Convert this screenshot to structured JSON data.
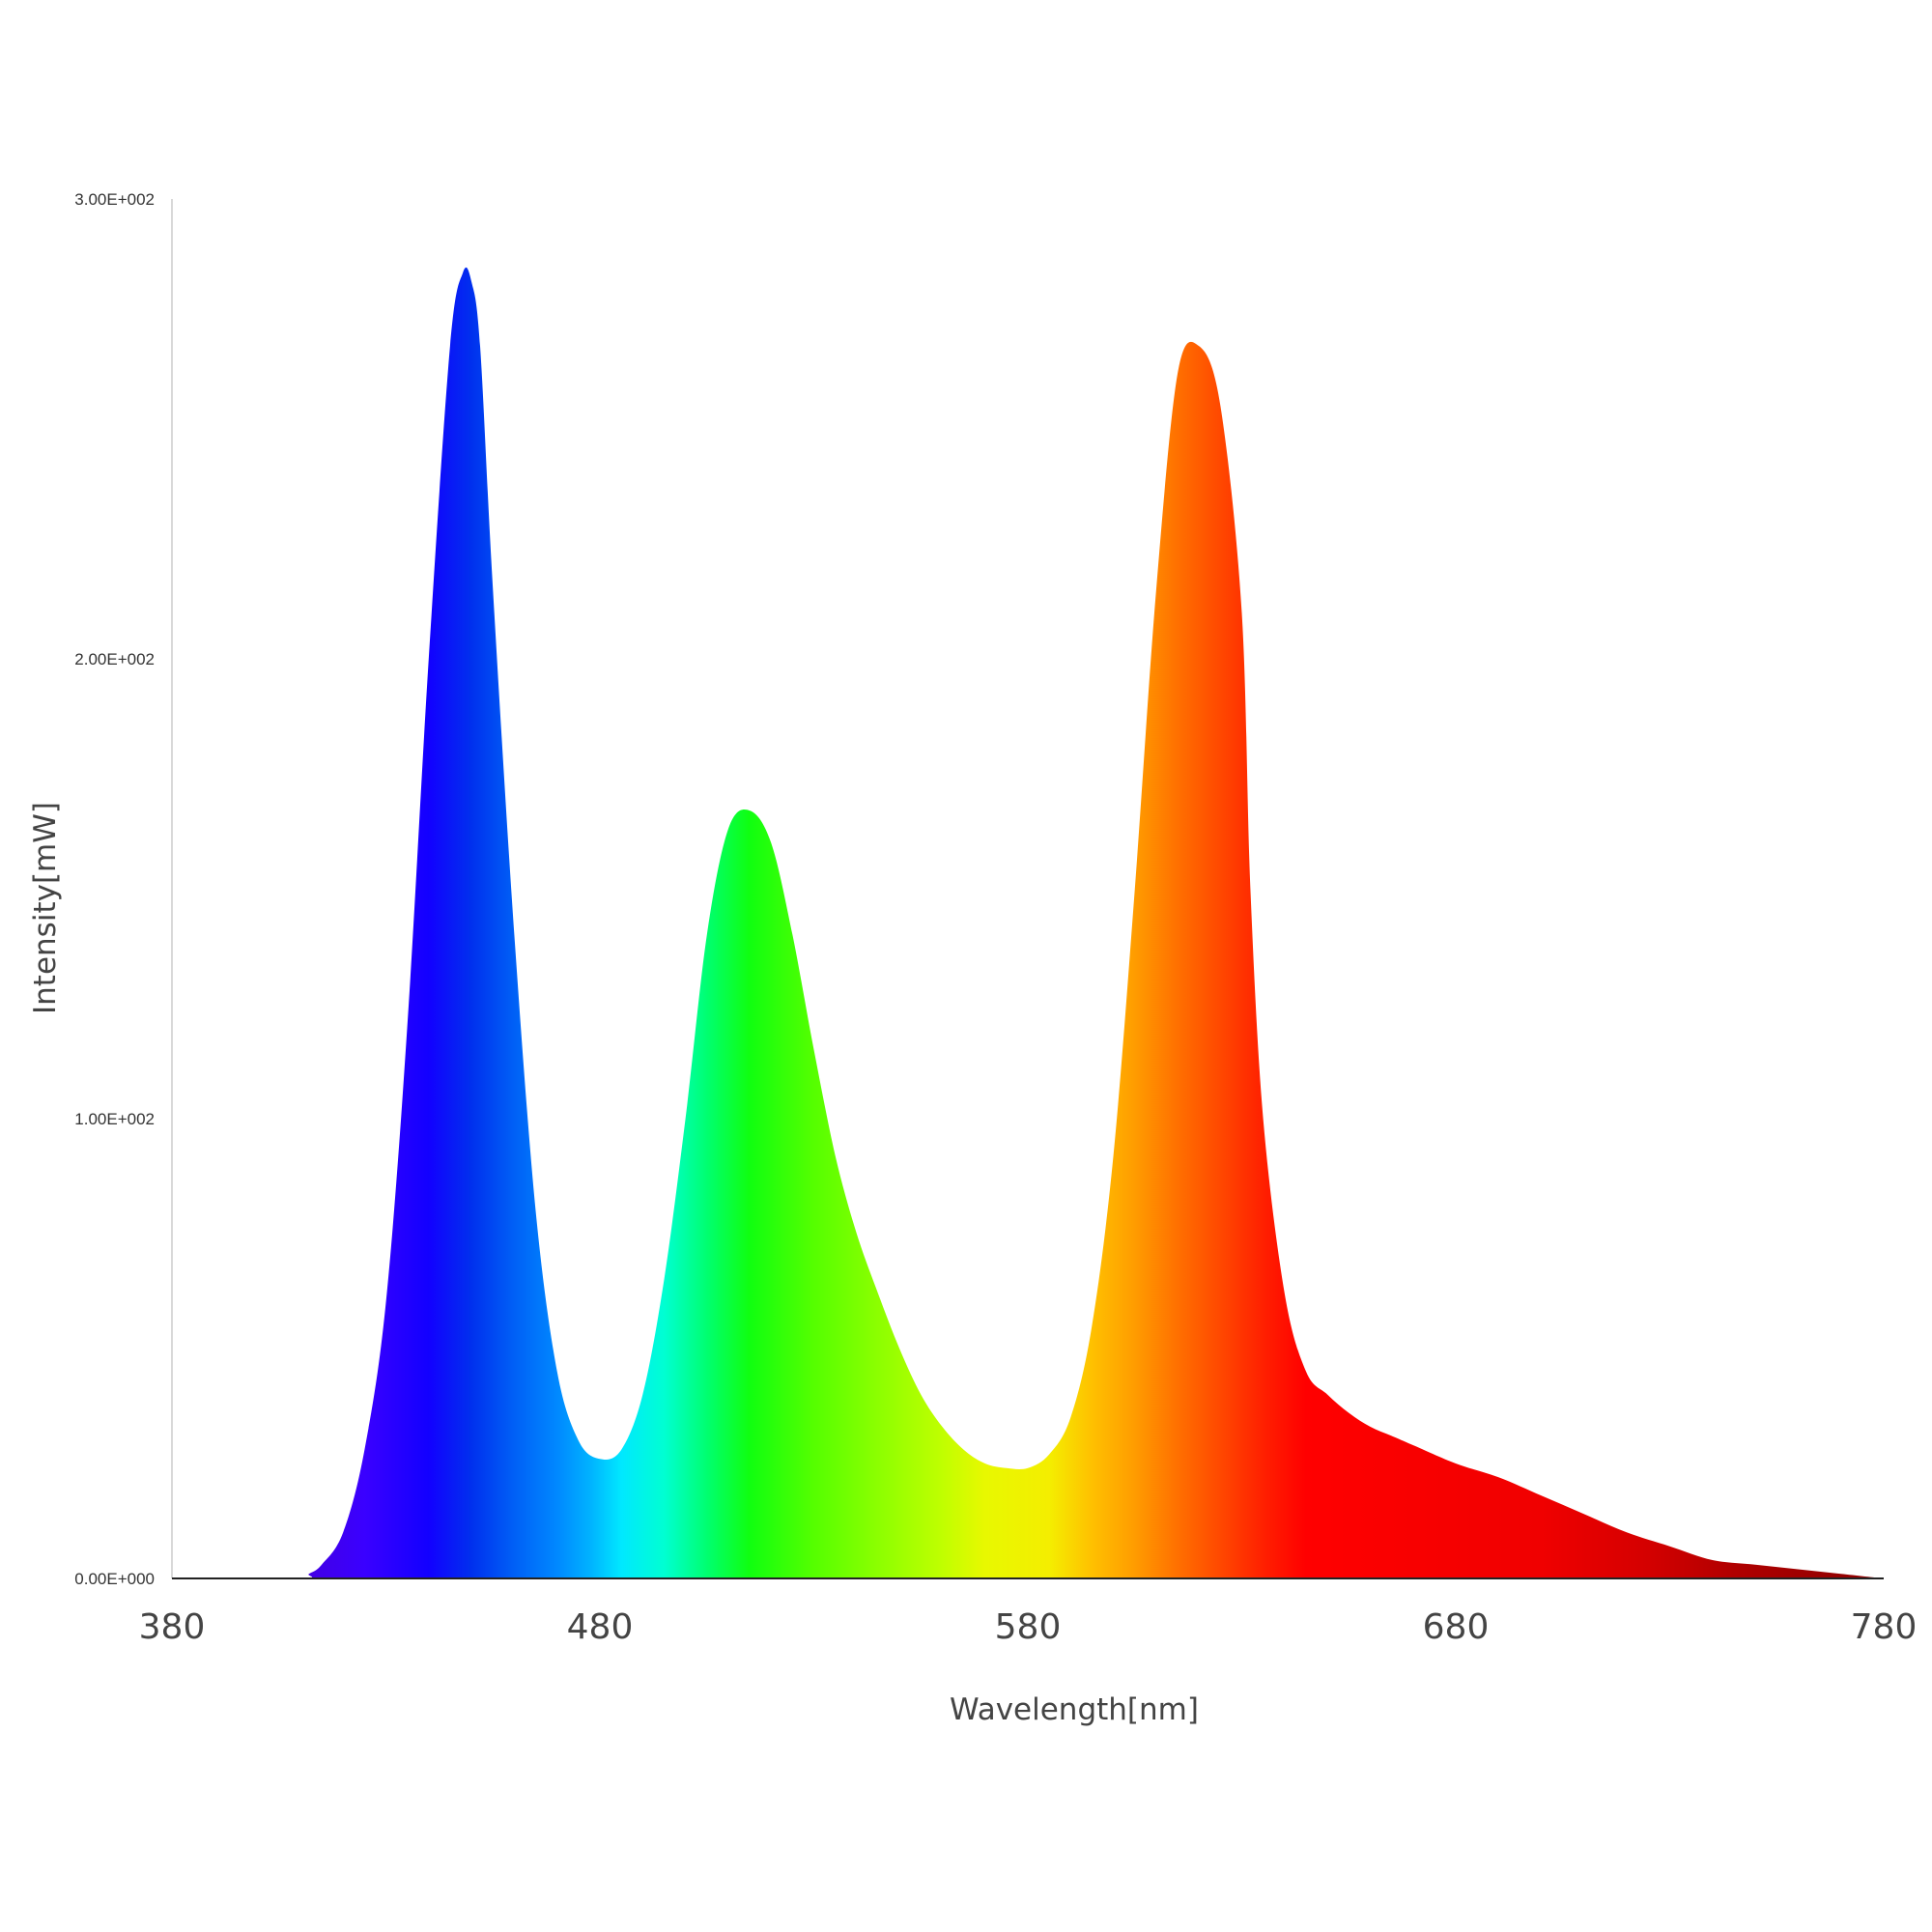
{
  "chart_data": {
    "type": "area",
    "title": "",
    "xlabel": "Wavelength[nm]",
    "ylabel": "Intensity[mW]",
    "xlim": [
      380,
      780
    ],
    "ylim": [
      0,
      300
    ],
    "x_ticks": [
      380,
      480,
      580,
      680,
      780
    ],
    "x_tick_labels": [
      "380",
      "480",
      "580",
      "680",
      "780"
    ],
    "y_ticks": [
      0,
      100,
      200,
      300
    ],
    "y_tick_labels": [
      "0.00E+000",
      "1.00E+002",
      "2.00E+002",
      "3.00E+002"
    ],
    "grid": false,
    "legend": "none",
    "fill": "visible-spectrum gradient by wavelength",
    "series": [
      {
        "x": [
          380,
          410,
          412,
          415,
          420,
          425,
          430,
          435,
          440,
          445,
          448,
          450,
          452,
          455,
          460,
          465,
          470,
          475,
          480,
          485,
          490,
          495,
          500,
          505,
          510,
          515,
          520,
          525,
          530,
          535,
          540,
          545,
          550,
          555,
          560,
          565,
          570,
          575,
          580,
          585,
          590,
          595,
          600,
          605,
          610,
          615,
          620,
          625,
          630,
          632,
          635,
          640,
          645,
          650,
          655,
          660,
          665,
          670,
          680,
          690,
          700,
          710,
          720,
          730,
          740,
          750,
          760,
          770,
          780
        ],
        "y": [
          0,
          0,
          1,
          3,
          10,
          28,
          60,
          120,
          200,
          268,
          284,
          282,
          268,
          215,
          140,
          80,
          45,
          30,
          26,
          28,
          40,
          65,
          100,
          140,
          163,
          167,
          160,
          140,
          115,
          92,
          75,
          62,
          50,
          40,
          33,
          28,
          25,
          24,
          24,
          27,
          35,
          55,
          92,
          150,
          215,
          262,
          268,
          255,
          210,
          150,
          100,
          62,
          45,
          40,
          36,
          33,
          31,
          29,
          25,
          22,
          18,
          14,
          10,
          7,
          4,
          3,
          2,
          1,
          0
        ]
      }
    ]
  }
}
